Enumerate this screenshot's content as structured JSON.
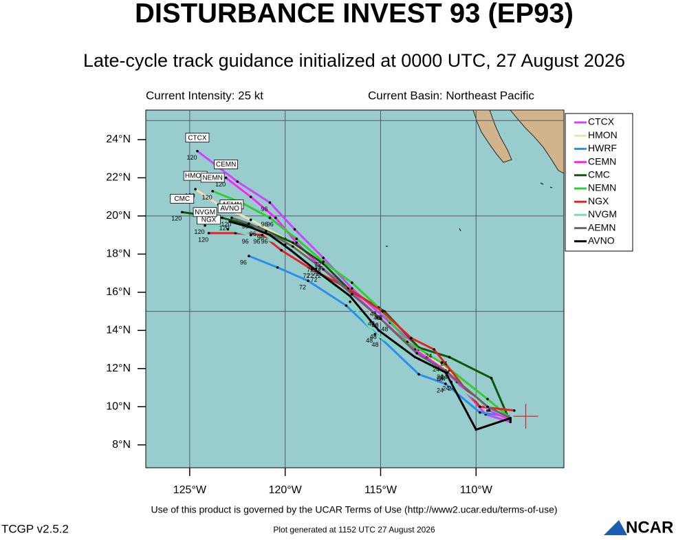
{
  "chart_data": {
    "type": "track",
    "title": "DISTURBANCE INVEST 93 (EP93)",
    "subtitle": "Late-cycle track guidance initialized at 0000 UTC, 27 August 2026",
    "intensity_label": "Current Intensity: 25 kt",
    "basin_label": "Current Basin: Northeast Pacific",
    "terms": "Use of this product is governed by the UCAR Terms of Use (http://www2.ucar.edu/terms-of-use)",
    "version": "TCGP v2.5.2",
    "generated": "Plot generated at 1152 UTC  27 August 2026",
    "logo_text": "NCAR",
    "xlim": [
      -127.3,
      -105.4
    ],
    "ylim": [
      6.8,
      25.55
    ],
    "xticks": [
      {
        "value": -125,
        "label": "125°W"
      },
      {
        "value": -120,
        "label": "120°W"
      },
      {
        "value": -115,
        "label": "115°W"
      },
      {
        "value": -110,
        "label": "110°W"
      }
    ],
    "yticks": [
      {
        "value": 8,
        "label": "8°N"
      },
      {
        "value": 10,
        "label": "10°N"
      },
      {
        "value": 12,
        "label": "12°N"
      },
      {
        "value": 14,
        "label": "14°N"
      },
      {
        "value": 16,
        "label": "16°N"
      },
      {
        "value": 18,
        "label": "18°N"
      },
      {
        "value": 20,
        "label": "20°N"
      },
      {
        "value": 22,
        "label": "22°N"
      },
      {
        "value": 24,
        "label": "24°N"
      }
    ],
    "ygrid": [
      15,
      20,
      25
    ],
    "grid": true,
    "legend": "top-right",
    "hours": [
      0,
      12,
      24,
      36,
      48,
      60,
      72,
      84,
      96,
      108,
      120
    ],
    "current_position": {
      "lon": -107.4,
      "lat": 9.5,
      "color": "#e02020"
    },
    "series": [
      {
        "name": "CTCX",
        "color": "#cc44ff",
        "x": [
          -108.2,
          -109.5,
          -111.0,
          -112.5,
          -114.5,
          -116.5,
          -118.0,
          -119.5,
          -120.8,
          -122.5,
          -124.6
        ],
        "y": [
          9.2,
          9.6,
          11.3,
          12.6,
          14.4,
          16.2,
          17.8,
          19.3,
          20.7,
          21.8,
          23.4
        ]
      },
      {
        "name": "HMON",
        "color": "#f5deb3",
        "x": [
          -108.2,
          -109.4,
          -111.4,
          -113.0,
          -115.2,
          -116.8,
          -118.4,
          -120.0,
          -121.8,
          -123.5,
          -124.7
        ],
        "y": [
          9.4,
          9.8,
          11.9,
          13.0,
          14.7,
          16.2,
          17.5,
          18.8,
          19.8,
          20.6,
          21.4
        ]
      },
      {
        "name": "HWRF",
        "color": "#2a8fe8",
        "x": [
          -108.3,
          -109.8,
          -111.6,
          -113.0,
          -115.0,
          -116.8,
          -118.8,
          -120.4,
          -121.9,
          null,
          null
        ],
        "y": [
          9.5,
          9.7,
          11.2,
          11.7,
          13.6,
          15.3,
          16.6,
          17.3,
          17.9,
          null,
          null
        ]
      },
      {
        "name": "CEMN",
        "color": "#ff22ff",
        "x": [
          -108.2,
          -109.3,
          -111.6,
          -113.2,
          -115.0,
          -116.6,
          -118.1,
          -119.4,
          -120.5,
          -121.8,
          -123.1
        ],
        "y": [
          9.3,
          9.8,
          11.9,
          13.0,
          14.6,
          16.1,
          17.3,
          18.6,
          19.9,
          21.0,
          22.0
        ]
      },
      {
        "name": "CMC",
        "color": "#0a5a0a",
        "x": [
          -108.3,
          -109.2,
          -111.4,
          -113.0,
          -114.8,
          -116.6,
          -118.0,
          -119.6,
          -121.4,
          -123.3,
          -125.4
        ],
        "y": [
          9.4,
          11.5,
          12.6,
          13.1,
          15.0,
          16.1,
          17.5,
          18.6,
          19.4,
          19.9,
          20.2
        ]
      },
      {
        "name": "NEMN",
        "color": "#33cc33",
        "x": [
          -108.2,
          -109.4,
          -111.8,
          -113.6,
          -115.1,
          -116.5,
          -118.0,
          -119.4,
          -120.8,
          -122.3,
          -123.8
        ],
        "y": [
          9.4,
          10.4,
          12.3,
          13.4,
          15.2,
          16.5,
          17.6,
          18.8,
          19.9,
          20.7,
          21.3
        ]
      },
      {
        "name": "NGX",
        "color": "#e82020",
        "x": [
          -108.0,
          -109.8,
          -112.2,
          -113.4,
          -114.9,
          -116.7,
          -118.6,
          -120.2,
          -121.2,
          -122.6,
          -124.0
        ],
        "y": [
          9.8,
          10.0,
          13.0,
          13.6,
          15.0,
          16.2,
          17.2,
          18.2,
          19.0,
          19.1,
          19.1
        ]
      },
      {
        "name": "NVGM",
        "color": "#77ddbb",
        "x": [
          -108.2,
          -109.3,
          -111.3,
          -113.0,
          -115.3,
          -116.6,
          -118.4,
          -120.0,
          -121.8,
          -123.0,
          -124.2
        ],
        "y": [
          9.4,
          9.9,
          11.3,
          12.5,
          13.8,
          15.5,
          17.2,
          18.5,
          19.0,
          19.3,
          19.5
        ]
      },
      {
        "name": "AEMN",
        "color": "#666666",
        "x": [
          -108.2,
          -109.4,
          -111.5,
          -113.1,
          -115.0,
          -116.5,
          -118.0,
          -119.6,
          -121.0,
          -121.9,
          -122.8
        ],
        "y": [
          9.4,
          10.0,
          11.8,
          12.8,
          14.6,
          15.9,
          17.2,
          18.4,
          19.2,
          19.6,
          19.9
        ]
      },
      {
        "name": "AVNO",
        "color": "#000000",
        "x": [
          -108.2,
          -110.0,
          -111.6,
          -113.2,
          -115.1,
          -116.6,
          -118.2,
          -119.7,
          -120.8,
          -121.8,
          -122.9
        ],
        "y": [
          9.4,
          8.8,
          11.8,
          12.6,
          14.0,
          15.8,
          17.0,
          18.2,
          19.0,
          19.4,
          19.7
        ]
      }
    ]
  }
}
